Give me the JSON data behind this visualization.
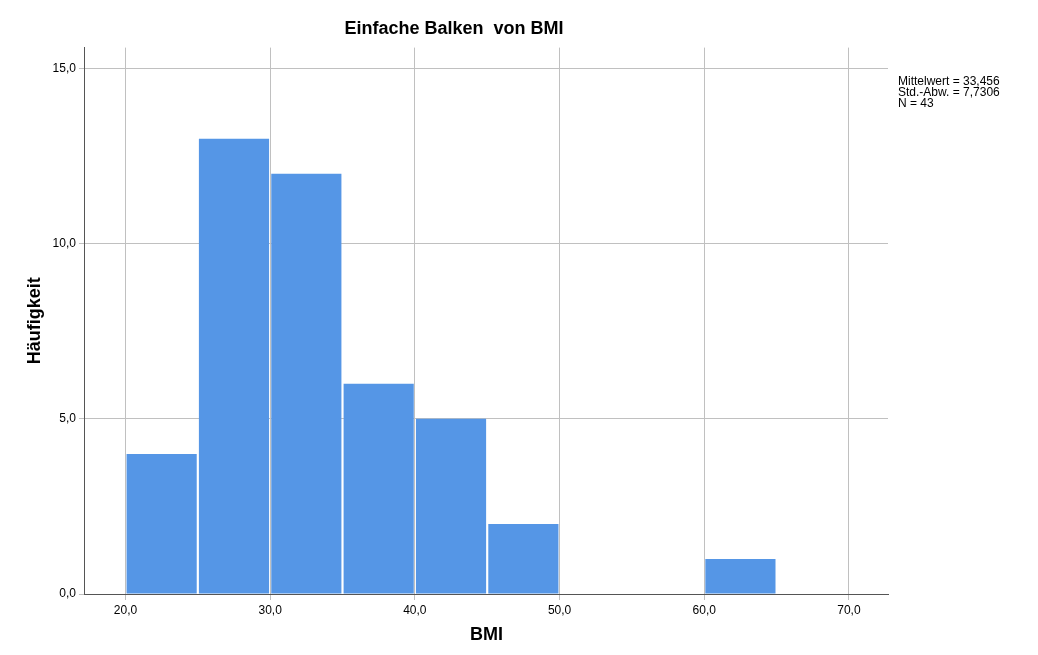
{
  "chart_data": {
    "type": "histogram",
    "title": "Einfache Balken  von BMI",
    "xlabel": "BMI",
    "ylabel": "Häufigkeit",
    "bins": [
      20,
      25,
      30,
      35,
      40,
      45,
      50,
      55,
      60,
      65
    ],
    "values": [
      4,
      13,
      12,
      6,
      5,
      2,
      0,
      0,
      1
    ],
    "color": "#5596e6",
    "xlim": [
      17.2,
      72.7
    ],
    "xticks": [
      {
        "value": 20,
        "label": "20,0"
      },
      {
        "value": 30,
        "label": "30,0"
      },
      {
        "value": 40,
        "label": "40,0"
      },
      {
        "value": 50,
        "label": "50,0"
      },
      {
        "value": 60,
        "label": "60,0"
      },
      {
        "value": 70,
        "label": "70,0"
      }
    ],
    "ylim": [
      0,
      15.6
    ],
    "yticks": [
      {
        "value": 0,
        "label": "0,0"
      },
      {
        "value": 5,
        "label": "5,0"
      },
      {
        "value": 10,
        "label": "10,0"
      },
      {
        "value": 15,
        "label": "15,0"
      }
    ],
    "grid": true,
    "legend": false,
    "annotations": [
      "Mittelwert = 33,456",
      "Std.-Abw. = 7,7306",
      "N = 43"
    ]
  }
}
